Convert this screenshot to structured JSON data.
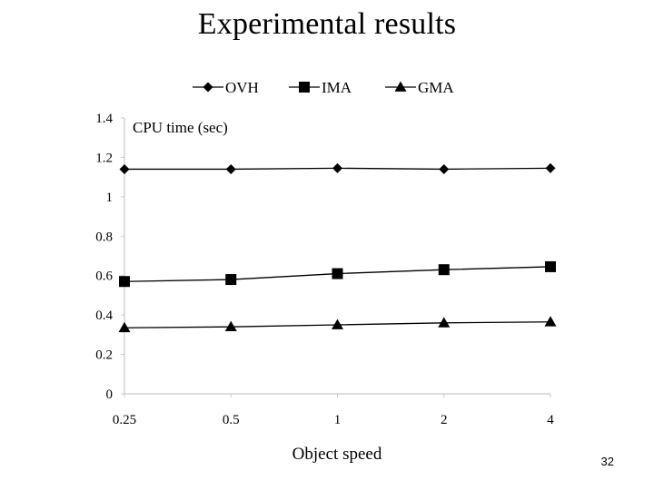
{
  "slide": {
    "title": "Experimental results",
    "page_number": "32"
  },
  "chart_data": {
    "type": "line",
    "title": "",
    "xlabel": "Object speed",
    "ylabel": "CPU time (sec)",
    "categories": [
      "0.25",
      "0.5",
      "1",
      "2",
      "4"
    ],
    "ylim": [
      0,
      1.4
    ],
    "yticks": [
      "0",
      "0.2",
      "0.4",
      "0.6",
      "0.8",
      "1",
      "1.2",
      "1.4"
    ],
    "grid": false,
    "legend_position": "top",
    "series": [
      {
        "name": "OVH",
        "marker": "diamond",
        "values": [
          1.14,
          1.14,
          1.145,
          1.14,
          1.145
        ]
      },
      {
        "name": "IMA",
        "marker": "square",
        "values": [
          0.57,
          0.58,
          0.61,
          0.63,
          0.645
        ]
      },
      {
        "name": "GMA",
        "marker": "triangle",
        "values": [
          0.335,
          0.34,
          0.35,
          0.36,
          0.365
        ]
      }
    ],
    "colors": {
      "line": "#000000",
      "axis": "#c8c8c8"
    }
  }
}
